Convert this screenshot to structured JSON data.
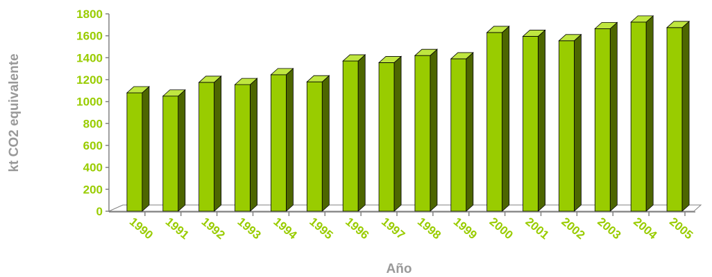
{
  "chart_data": {
    "type": "bar",
    "title": "",
    "xlabel": "Año",
    "ylabel": "kt CO2 equivalente",
    "categories": [
      "1990",
      "1991",
      "1992",
      "1993",
      "1994",
      "1995",
      "1996",
      "1997",
      "1998",
      "1999",
      "2000",
      "2001",
      "2002",
      "2003",
      "2004",
      "2005"
    ],
    "series": [
      {
        "values": [
          1080,
          1050,
          1175,
          1155,
          1245,
          1180,
          1370,
          1355,
          1420,
          1390,
          1630,
          1595,
          1555,
          1665,
          1725,
          1675
        ]
      }
    ],
    "ylim": [
      0,
      1800
    ],
    "yticks": [
      "0",
      "200",
      "400",
      "600",
      "800",
      "1000",
      "1200",
      "1400",
      "1600",
      "1800"
    ],
    "grid": false,
    "legend": "none",
    "colors": {
      "bar_front": "#99cc00",
      "bar_side": "#4d6600",
      "bar_top": "#bfe640",
      "tick_label": "#99cc00",
      "axis_title": "#999999",
      "axis_line": "#808080"
    }
  }
}
